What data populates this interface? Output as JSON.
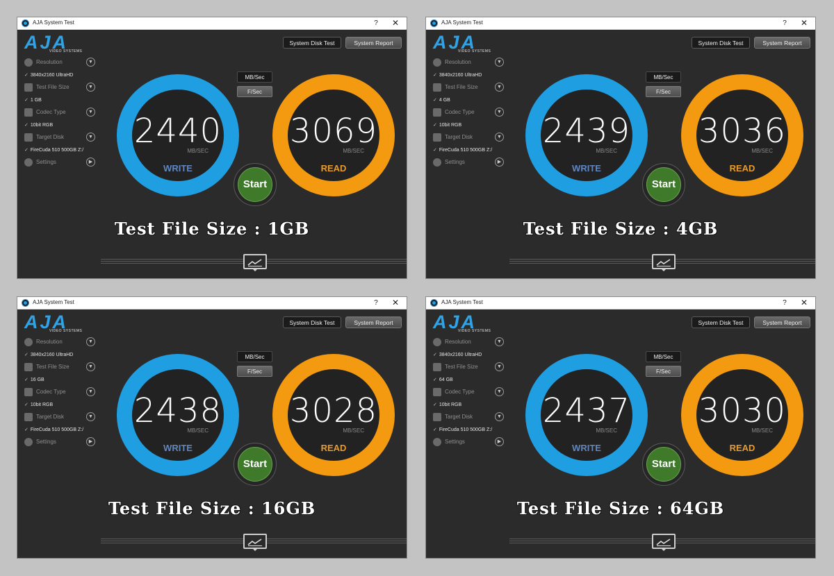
{
  "shared": {
    "window_title": "AJA System Test",
    "help_label": "?",
    "close_label": "✕",
    "logo_letters": "AJA",
    "logo_subtitle": "VIDEO SYSTEMS",
    "system_disk_test_label": "System Disk Test",
    "system_report_label": "System Report",
    "sidebar": {
      "resolution_label": "Resolution",
      "resolution_value": "3840x2160 UltraHD",
      "test_file_size_label": "Test File Size",
      "codec_type_label": "Codec Type",
      "codec_value": "10bit RGB",
      "target_disk_label": "Target Disk",
      "target_disk_value": "FireCuda 510 500GB Z:/",
      "settings_label": "Settings",
      "check_mark": "✓"
    },
    "mbsec_label": "MB/Sec",
    "fsec_label": "F/Sec",
    "unit_label": "MB/SEC",
    "write_label": "WRITE",
    "read_label": "READ",
    "start_label": "Start",
    "accent_write": "#1f9fe2",
    "accent_read": "#f39a11",
    "start_color": "#3e7a2a"
  },
  "windows": [
    {
      "file_size_value": "1 GB",
      "write": "2440",
      "read": "3069",
      "caption": "Test File Size : 1GB"
    },
    {
      "file_size_value": "4 GB",
      "write": "2439",
      "read": "3036",
      "caption": "Test File Size : 4GB"
    },
    {
      "file_size_value": "16 GB",
      "write": "2438",
      "read": "3028",
      "caption": "Test File Size : 16GB"
    },
    {
      "file_size_value": "64 GB",
      "write": "2437",
      "read": "3030",
      "caption": "Test File Size : 64GB"
    }
  ]
}
